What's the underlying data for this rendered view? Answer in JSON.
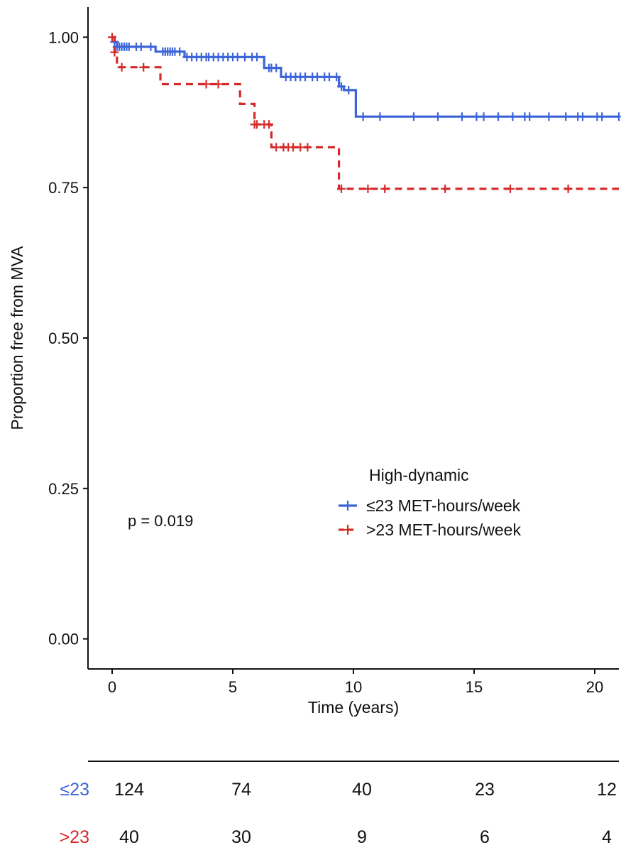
{
  "chart_data": {
    "type": "line",
    "subtype": "kaplan-meier",
    "title": "",
    "xlabel": "Time (years)",
    "ylabel": "Proportion free from MVA",
    "xlim": [
      -1,
      21
    ],
    "ylim": [
      -0.05,
      1.05
    ],
    "x_ticks": [
      0,
      5,
      10,
      15,
      20
    ],
    "x_tick_labels": [
      "0",
      "5",
      "10",
      "15",
      "20"
    ],
    "y_ticks": [
      0,
      0.25,
      0.5,
      0.75,
      1.0
    ],
    "y_tick_labels": [
      "0.00",
      "0.25",
      "0.50",
      "0.75",
      "1.00"
    ],
    "grid": false,
    "legend": {
      "title": "High-dynamic",
      "position": "right-center",
      "entries": [
        "≤23 MET-hours/week",
        ">23 MET-hours/week"
      ]
    },
    "annotation": "p = 0.019",
    "series": [
      {
        "name": "≤23 MET-hours/week",
        "color": "#3b64d8",
        "linestyle": "solid",
        "steps": [
          [
            0,
            1.0
          ],
          [
            0.1,
            0.992
          ],
          [
            0.2,
            0.984
          ],
          [
            1.8,
            0.976
          ],
          [
            3.0,
            0.967
          ],
          [
            6.3,
            0.949
          ],
          [
            7.0,
            0.934
          ],
          [
            9.4,
            0.918
          ],
          [
            9.6,
            0.912
          ],
          [
            10.1,
            0.868
          ],
          [
            21.0,
            0.868
          ]
        ],
        "censor_times": [
          0.1,
          0.2,
          0.3,
          0.4,
          0.5,
          0.6,
          0.7,
          1.0,
          1.2,
          1.6,
          2.1,
          2.2,
          2.3,
          2.4,
          2.5,
          2.6,
          2.8,
          3.1,
          3.3,
          3.5,
          3.7,
          3.9,
          4.0,
          4.2,
          4.4,
          4.6,
          4.8,
          5.0,
          5.2,
          5.5,
          5.8,
          6.0,
          6.5,
          6.6,
          6.8,
          7.2,
          7.4,
          7.6,
          7.8,
          8.0,
          8.3,
          8.5,
          8.8,
          9.0,
          9.3,
          9.5,
          9.8,
          10.4,
          11.1,
          12.5,
          13.5,
          14.5,
          15.1,
          15.4,
          16.0,
          16.6,
          17.1,
          17.3,
          18.1,
          18.8,
          19.3,
          19.5,
          20.1,
          20.3,
          21.0
        ],
        "risk_label": "≤23",
        "at_risk": [
          124,
          74,
          40,
          23,
          12
        ]
      },
      {
        "name": ">23 MET-hours/week",
        "color": "#d42a2a",
        "linestyle": "dashed",
        "steps": [
          [
            0,
            1.0
          ],
          [
            0.1,
            0.975
          ],
          [
            0.2,
            0.95
          ],
          [
            2.0,
            0.922
          ],
          [
            5.3,
            0.889
          ],
          [
            5.9,
            0.855
          ],
          [
            6.6,
            0.817
          ],
          [
            9.4,
            0.748
          ],
          [
            21.0,
            0.748
          ]
        ],
        "censor_times": [
          0.0,
          0.1,
          0.4,
          1.3,
          3.9,
          4.4,
          5.9,
          6.0,
          6.3,
          6.5,
          6.8,
          7.1,
          7.3,
          7.5,
          7.8,
          8.1,
          9.5,
          10.6,
          11.3,
          13.8,
          16.5,
          18.9
        ],
        "risk_label": ">23",
        "at_risk": [
          40,
          30,
          9,
          6,
          4
        ]
      }
    ],
    "risk_table_times": [
      0,
      5,
      10,
      15,
      20
    ]
  }
}
